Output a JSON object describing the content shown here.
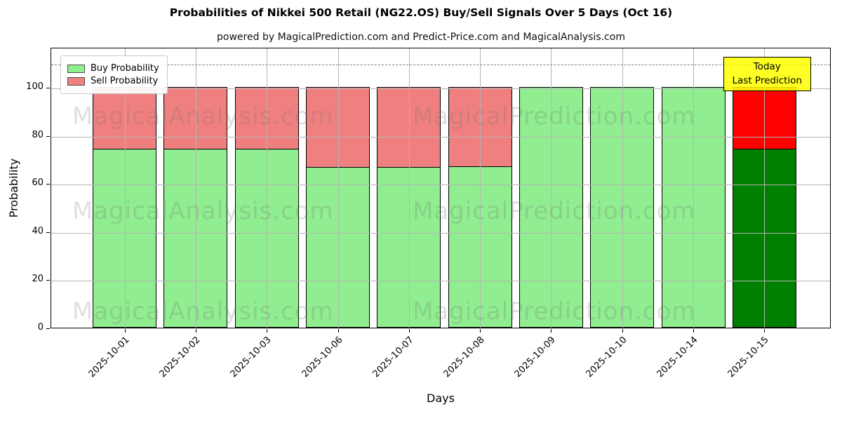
{
  "title": "Probabilities of Nikkei 500 Retail (NG22.OS) Buy/Sell Signals Over 5 Days (Oct 16)",
  "subtitle": "powered by MagicalPrediction.com and Predict-Price.com and MagicalAnalysis.com",
  "watermarks": {
    "left": "MagicalAnalysis.com",
    "right": "MagicalPrediction.com"
  },
  "annotation_box": {
    "lines": [
      "Today",
      "Last Prediction"
    ],
    "bg_color": "#ffff00"
  },
  "legend": {
    "position": "upper left",
    "items": [
      {
        "label": "Buy Probability",
        "color": "#90ee90"
      },
      {
        "label": "Sell Probability",
        "color": "#f08080"
      }
    ]
  },
  "chart_data": {
    "type": "bar",
    "stacked": true,
    "title": "Probabilities of Nikkei 500 Retail (NG22.OS) Buy/Sell Signals Over 5 Days (Oct 16)",
    "xlabel": "Days",
    "ylabel": "Probability",
    "categories": [
      "2025-10-01",
      "2025-10-02",
      "2025-10-03",
      "2025-10-06",
      "2025-10-07",
      "2025-10-08",
      "2025-10-09",
      "2025-10-10",
      "2025-10-14",
      "2025-10-15"
    ],
    "series": [
      {
        "name": "Buy Probability",
        "default_color": "#90ee90",
        "colors": [
          "#90ee90",
          "#90ee90",
          "#90ee90",
          "#90ee90",
          "#90ee90",
          "#90ee90",
          "#90ee90",
          "#90ee90",
          "#90ee90",
          "#008000"
        ],
        "values": [
          74.4,
          74.4,
          74.4,
          66.7,
          66.7,
          67.0,
          100,
          100,
          100,
          74.4
        ]
      },
      {
        "name": "Sell Probability",
        "default_color": "#f08080",
        "colors": [
          "#f08080",
          "#f08080",
          "#f08080",
          "#f08080",
          "#f08080",
          "#f08080",
          "#f08080",
          "#f08080",
          "#f08080",
          "#ff0000"
        ],
        "values": [
          25.6,
          25.6,
          25.6,
          33.3,
          33.3,
          33.0,
          0,
          0,
          0,
          25.6
        ]
      }
    ],
    "bar_edge_color": "#000000",
    "yticks": [
      0,
      20,
      40,
      60,
      80,
      100
    ],
    "ylim": [
      0,
      116.6
    ],
    "dashed_line_y": 110,
    "grid": true
  }
}
